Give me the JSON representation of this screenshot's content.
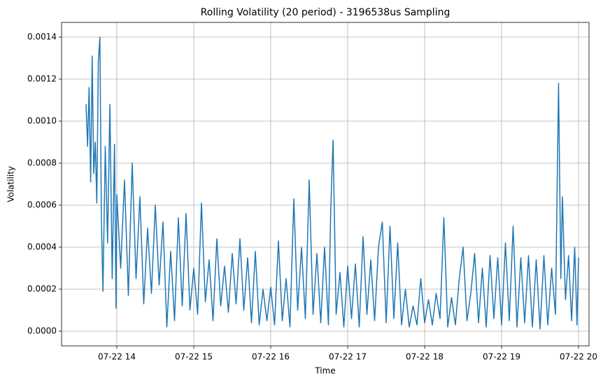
{
  "chart_data": {
    "type": "line",
    "title": "Rolling Volatility (20 period) - 3196538us Sampling",
    "xlabel": "Time",
    "ylabel": "Volatility",
    "grid": true,
    "xlim": [
      13.282,
      20.136
    ],
    "ylim": [
      -7e-05,
      0.00147
    ],
    "xticks": [
      {
        "value": 14,
        "label": "07-22 14"
      },
      {
        "value": 15,
        "label": "07-22 15"
      },
      {
        "value": 16,
        "label": "07-22 16"
      },
      {
        "value": 17,
        "label": "07-22 17"
      },
      {
        "value": 18,
        "label": "07-22 18"
      },
      {
        "value": 19,
        "label": "07-22 19"
      },
      {
        "value": 20,
        "label": "07-22 20"
      }
    ],
    "yticks": [
      {
        "value": 0,
        "label": "0.0000"
      },
      {
        "value": 0.0002,
        "label": "0.0002"
      },
      {
        "value": 0.0004,
        "label": "0.0004"
      },
      {
        "value": 0.0006,
        "label": "0.0006"
      },
      {
        "value": 0.0008,
        "label": "0.0008"
      },
      {
        "value": 0.001,
        "label": "0.0010"
      },
      {
        "value": 0.0012,
        "label": "0.0012"
      },
      {
        "value": 0.0014,
        "label": "0.0014"
      }
    ],
    "series": [
      {
        "color": "#1f77b4",
        "x": [
          13.6,
          13.62,
          13.64,
          13.66,
          13.68,
          13.7,
          13.72,
          13.74,
          13.76,
          13.78,
          13.8,
          13.82,
          13.85,
          13.88,
          13.91,
          13.94,
          13.97,
          13.99,
          14.0,
          14.05,
          14.1,
          14.15,
          14.2,
          14.25,
          14.3,
          14.35,
          14.4,
          14.45,
          14.5,
          14.55,
          14.6,
          14.65,
          14.7,
          14.75,
          14.8,
          14.85,
          14.9,
          14.95,
          15.0,
          15.05,
          15.1,
          15.15,
          15.2,
          15.25,
          15.3,
          15.35,
          15.4,
          15.45,
          15.5,
          15.55,
          15.6,
          15.65,
          15.7,
          15.75,
          15.8,
          15.85,
          15.9,
          15.95,
          16.0,
          16.05,
          16.1,
          16.15,
          16.2,
          16.25,
          16.3,
          16.35,
          16.4,
          16.45,
          16.5,
          16.55,
          16.6,
          16.65,
          16.7,
          16.75,
          16.78,
          16.81,
          16.85,
          16.9,
          16.95,
          17.0,
          17.05,
          17.1,
          17.15,
          17.2,
          17.25,
          17.3,
          17.35,
          17.4,
          17.45,
          17.5,
          17.55,
          17.6,
          17.65,
          17.7,
          17.75,
          17.8,
          17.85,
          17.9,
          17.95,
          18.0,
          18.05,
          18.1,
          18.15,
          18.2,
          18.25,
          18.3,
          18.35,
          18.4,
          18.45,
          18.5,
          18.55,
          18.6,
          18.65,
          18.7,
          18.75,
          18.8,
          18.85,
          18.9,
          18.95,
          19.0,
          19.05,
          19.1,
          19.15,
          19.2,
          19.25,
          19.3,
          19.35,
          19.4,
          19.45,
          19.5,
          19.55,
          19.6,
          19.65,
          19.7,
          19.74,
          19.77,
          19.79,
          19.83,
          19.87,
          19.91,
          19.95,
          19.98,
          20.0
        ],
        "values": [
          0.00108,
          0.00088,
          0.00116,
          0.00071,
          0.00131,
          0.00075,
          0.0009,
          0.00061,
          0.00128,
          0.0014,
          0.00052,
          0.00019,
          0.00088,
          0.00042,
          0.00108,
          0.00025,
          0.00089,
          0.00011,
          0.00065,
          0.0003,
          0.00072,
          0.00017,
          0.0008,
          0.00025,
          0.00064,
          0.00013,
          0.00049,
          0.00018,
          0.0006,
          0.00022,
          0.00052,
          2e-05,
          0.00038,
          5e-05,
          0.00054,
          0.00012,
          0.00056,
          0.0001,
          0.0003,
          8e-05,
          0.00061,
          0.00014,
          0.00034,
          5e-05,
          0.00044,
          0.00012,
          0.00031,
          9e-05,
          0.00037,
          0.00013,
          0.00044,
          0.0001,
          0.00035,
          4e-05,
          0.00038,
          3e-05,
          0.0002,
          5e-05,
          0.00021,
          3e-05,
          0.00043,
          5e-05,
          0.00025,
          2e-05,
          0.00063,
          0.0001,
          0.0004,
          6e-05,
          0.00072,
          8e-05,
          0.00037,
          4e-05,
          0.0004,
          3e-05,
          0.00058,
          0.00091,
          8e-05,
          0.00028,
          2e-05,
          0.00031,
          6e-05,
          0.00032,
          2e-05,
          0.00045,
          8e-05,
          0.00034,
          5e-05,
          0.0004,
          0.00052,
          4e-05,
          0.0005,
          6e-05,
          0.00042,
          3e-05,
          0.0002,
          2e-05,
          0.00012,
          3e-05,
          0.00025,
          4e-05,
          0.00015,
          3e-05,
          0.00018,
          6e-05,
          0.00054,
          2e-05,
          0.00016,
          3e-05,
          0.00025,
          0.0004,
          5e-05,
          0.00018,
          0.00037,
          4e-05,
          0.0003,
          2e-05,
          0.00036,
          6e-05,
          0.00035,
          3e-05,
          0.00042,
          5e-05,
          0.0005,
          2e-05,
          0.00035,
          4e-05,
          0.00036,
          2e-05,
          0.00034,
          1e-05,
          0.00036,
          3e-05,
          0.0003,
          8e-05,
          0.00118,
          0.00025,
          0.00064,
          0.00015,
          0.00036,
          5e-05,
          0.0004,
          3e-05,
          0.00035
        ]
      }
    ]
  }
}
